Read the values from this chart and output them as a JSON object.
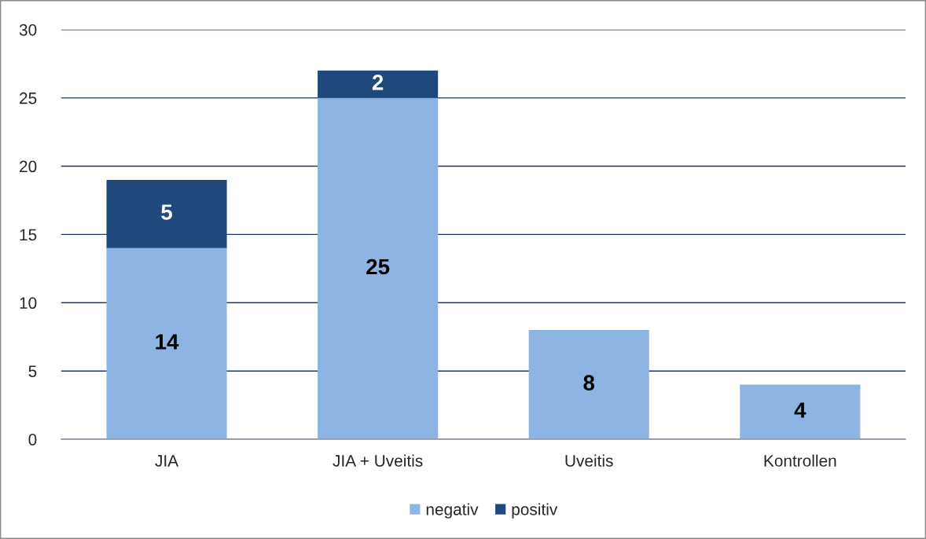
{
  "chart_data": {
    "type": "bar",
    "stacked": true,
    "categories": [
      "JIA",
      "JIA + Uveitis",
      "Uveitis",
      "Kontrollen"
    ],
    "series": [
      {
        "name": "negativ",
        "color": "#8eb4e3",
        "values": [
          14,
          25,
          8,
          4
        ]
      },
      {
        "name": "positiv",
        "color": "#1f497d",
        "values": [
          5,
          2,
          null,
          null
        ]
      }
    ],
    "ylim": [
      0,
      30
    ],
    "yticks": [
      0,
      5,
      10,
      15,
      20,
      25,
      30
    ],
    "grid": "y",
    "legend": "bottom",
    "data_labels": true
  }
}
